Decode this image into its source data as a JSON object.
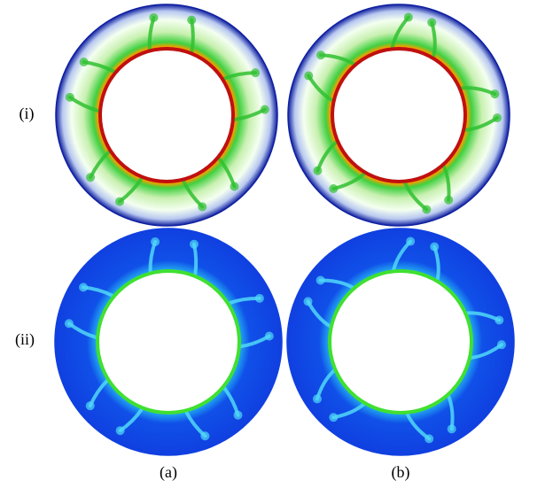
{
  "row_labels": [
    "(i)",
    "(ii)"
  ],
  "column_labels": [
    "(a)",
    "(b)"
  ]
}
